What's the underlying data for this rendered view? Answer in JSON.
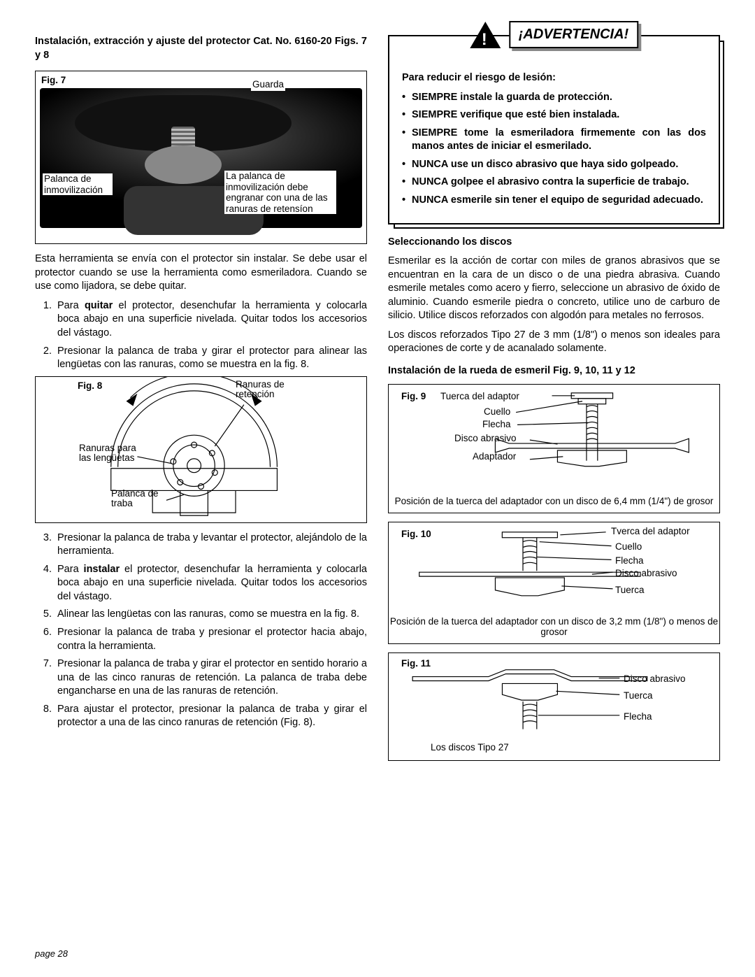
{
  "left": {
    "title": "Instalación, extracción y ajuste del protector Cat. No. 6160-20 Figs. 7 y 8",
    "fig7": {
      "label": "Fig. 7",
      "label_guarda": "Guarda",
      "label_palanca": "Palanca de inmovilización",
      "label_note": "La palanca de inmovilización debe engranar con una de las ranuras de retensíon"
    },
    "intro": "Esta herramienta se envía con el protector sin instalar. Se debe usar el protector cuando se use la herramienta como esmeriladora. Cuando se use como lijadora, se debe quitar.",
    "steps_a": [
      "Para quitar el protector, desenchufar la herramienta y colocarla boca abajo en una superficie nivelada. Quitar todos los accesorios del vástago.",
      "Presionar la palanca de traba y girar el protector para alinear las lengüetas con las ranuras, como se muestra en la fig. 8."
    ],
    "fig8": {
      "label": "Fig. 8",
      "label_ranuras_ret": "Ranuras de retención",
      "label_ranuras_len": "Ranuras para las lengüetas",
      "label_palanca": "Palanca de traba"
    },
    "steps_b": [
      "Presionar la palanca de traba y levantar el protector, alejándolo de la herramienta.",
      "Para instalar el protector, desenchufar la herramienta y colocarla boca abajo en una superficie nivelada. Quitar todos los accesorios del vástago.",
      "Alinear las lengüetas con las ranuras, como se muestra en la fig. 8.",
      "Presionar la palanca de traba y presionar el protector hacia abajo, contra la herramienta.",
      "Presionar la palanca de traba y girar el protector en sentido horario a una de las cinco ranuras de retención. La palanca de traba debe engancharse en una de las ranuras de retención.",
      "Para ajustar el protector, presionar la palanca de traba y girar el protector a una de las cinco ranuras de retención (Fig. 8)."
    ]
  },
  "right": {
    "warning": {
      "banner": "¡ADVERTENCIA!",
      "heading": "Para reducir el riesgo de lesión:",
      "items": [
        "SIEMPRE instale la guarda de protección.",
        "SIEMPRE verifique que esté bien instalada.",
        "SIEMPRE tome la esmeriladora firmemente con las dos manos  antes de iniciar el esmerilado.",
        "NUNCA use un disco abrasivo que haya sido golpeado.",
        "NUNCA golpee el abrasivo contra la superficie de trabajo.",
        "NUNCA esmerile sin tener el equipo de seguridad adecuado."
      ]
    },
    "select_head": "Seleccionando los discos",
    "select_p1": "Esmerilar es la acción de cortar con miles de granos abrasivos que se encuentran en la cara de un disco o de una piedra abrasiva. Cuando esmerile metales como acero y fierro, seleccione un abrasivo de óxido de aluminio. Cuando esmerile piedra o concreto, utilice uno de carburo de silicio. Utilice discos reforzados con algodón para metales no ferrosos.",
    "select_p2": "Los discos reforzados Tipo 27 de 3 mm (1/8\") o menos son ideales para operaciones de corte y de acanalado solamente.",
    "install_head": "Instalación de la rueda de esmeril Fig. 9, 10, 11 y 12",
    "fig9": {
      "label": "Fig. 9",
      "l_tuerca": "Tuerca del adaptor",
      "l_cuello": "Cuello",
      "l_flecha": "Flecha",
      "l_disco": "Disco abrasivo",
      "l_adapt": "Adaptador",
      "caption": "Posición de la tuerca del adaptador con un disco de 6,4 mm (1/4\") de grosor"
    },
    "fig10": {
      "label": "Fig. 10",
      "l_tuerca_a": "Tverca del adaptor",
      "l_cuello": "Cuello",
      "l_flecha": "Flecha",
      "l_disco": "Disco abrasivo",
      "l_tuerca": "Tuerca",
      "caption": "Posición de la tuerca del adaptador con un disco de 3,2 mm (1/8\") o menos de grosor"
    },
    "fig11": {
      "label": "Fig. 11",
      "l_disco": "Disco abrasivo",
      "l_tuerca": "Tuerca",
      "l_flecha": "Flecha",
      "caption": "Los discos Tipo 27"
    }
  },
  "page": "page 28"
}
